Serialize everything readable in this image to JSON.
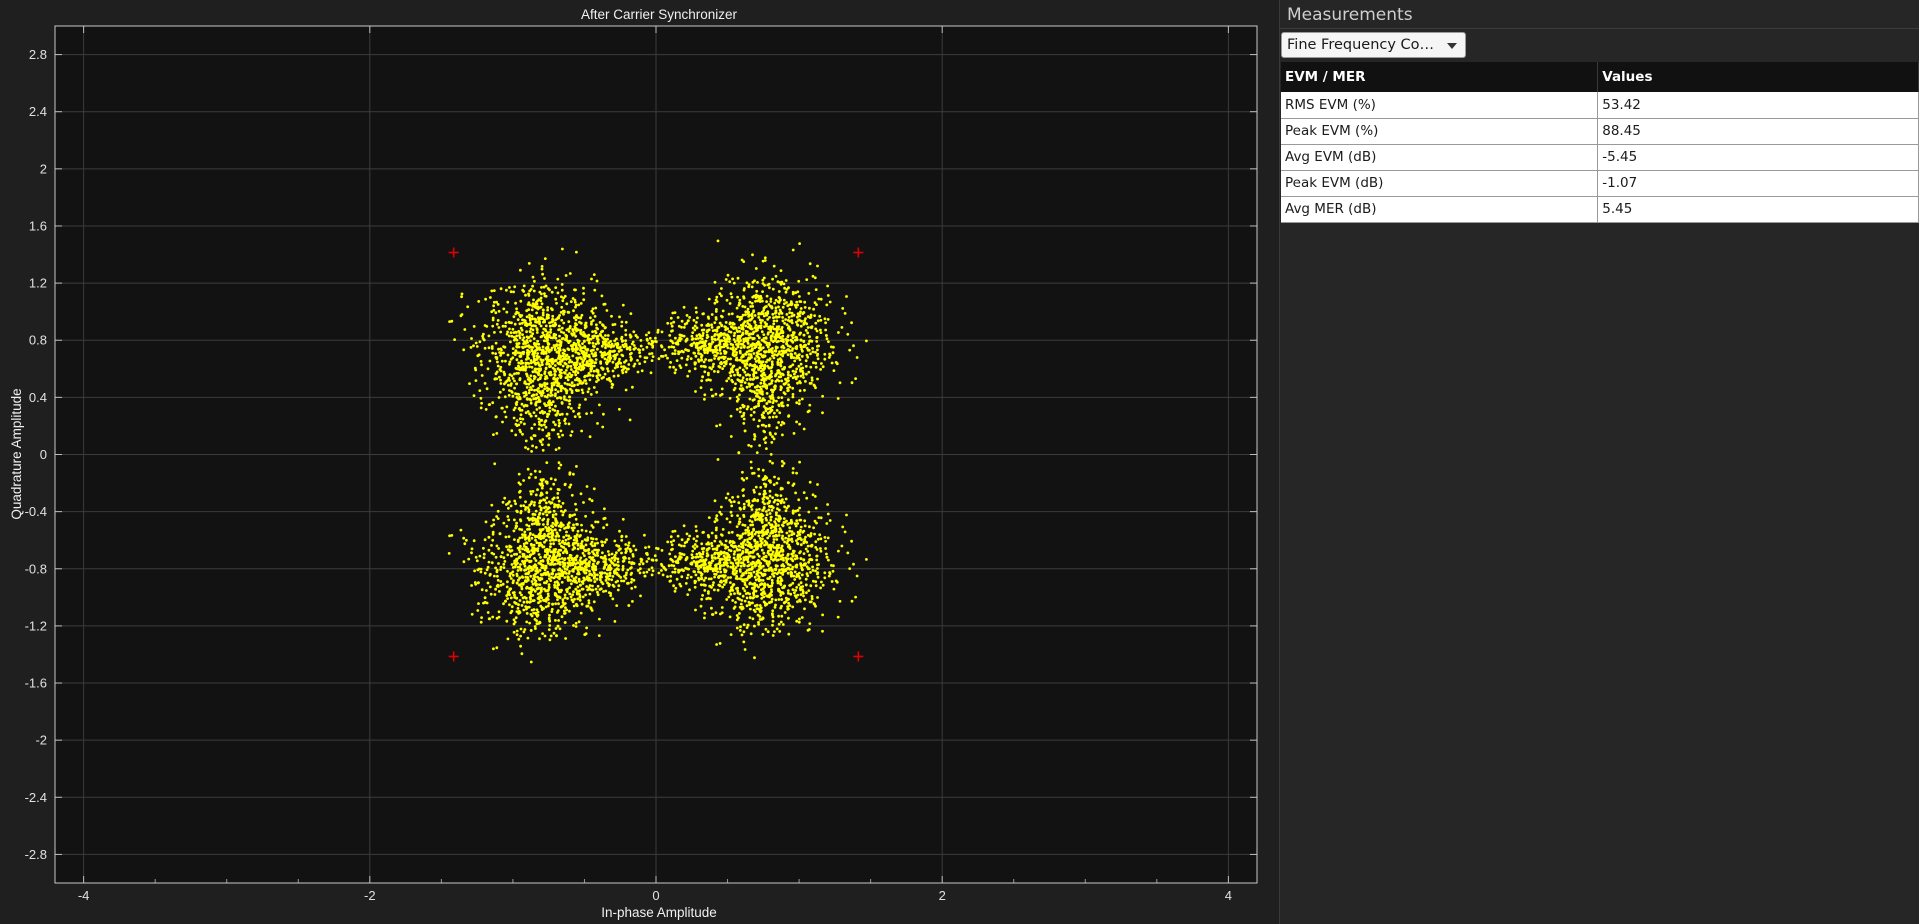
{
  "plot": {
    "title": "After Carrier Synchronizer",
    "xlabel": "In-phase Amplitude",
    "ylabel": "Quadrature Amplitude",
    "background_color": "#121212",
    "point_color": "#ffff00",
    "reference_color": "#e00000"
  },
  "chart_data": {
    "type": "scatter",
    "title": "After Carrier Synchronizer",
    "xlabel": "In-phase Amplitude",
    "ylabel": "Quadrature Amplitude",
    "xlim": [
      -4.2,
      4.2
    ],
    "ylim": [
      -3.0,
      3.0
    ],
    "xticks": [
      -4,
      -2,
      0,
      2,
      4
    ],
    "yticks": [
      2.8,
      2.4,
      2,
      1.6,
      1.2,
      0.8,
      0.4,
      0,
      -0.4,
      -0.8,
      -1.2,
      -1.6,
      -2,
      -2.4,
      -2.8
    ],
    "xtick_labels": [
      "-4",
      "-2",
      "0",
      "2",
      "4"
    ],
    "ytick_labels": [
      "2.8",
      "2.4",
      "2",
      "1.6",
      "1.2",
      "0.8",
      "0.4",
      "0",
      "-0.4",
      "-0.8",
      "-1.2",
      "-1.6",
      "-2",
      "-2.4",
      "-2.8"
    ],
    "grid": true,
    "reference_constellation": [
      {
        "x": -1.414,
        "y": 1.414
      },
      {
        "x": 1.414,
        "y": 1.414
      },
      {
        "x": -1.414,
        "y": -1.414
      },
      {
        "x": 1.414,
        "y": -1.414
      }
    ],
    "received_clusters": [
      {
        "x": -0.78,
        "y": 0.72
      },
      {
        "x": 0.78,
        "y": 0.78
      },
      {
        "x": -0.78,
        "y": -0.78
      },
      {
        "x": 0.78,
        "y": -0.75
      }
    ],
    "received_symbol_count": 6000
  },
  "measurements": {
    "title": "Measurements",
    "dropdown_value": "Fine Frequency Co…",
    "columns": [
      "EVM / MER",
      "Values"
    ],
    "rows": [
      {
        "label": "RMS EVM (%)",
        "value": "53.42"
      },
      {
        "label": "Peak EVM (%)",
        "value": "88.45"
      },
      {
        "label": "Avg EVM (dB)",
        "value": "-5.45"
      },
      {
        "label": "Peak EVM (dB)",
        "value": "-1.07"
      },
      {
        "label": "Avg MER (dB)",
        "value": "5.45"
      }
    ]
  }
}
